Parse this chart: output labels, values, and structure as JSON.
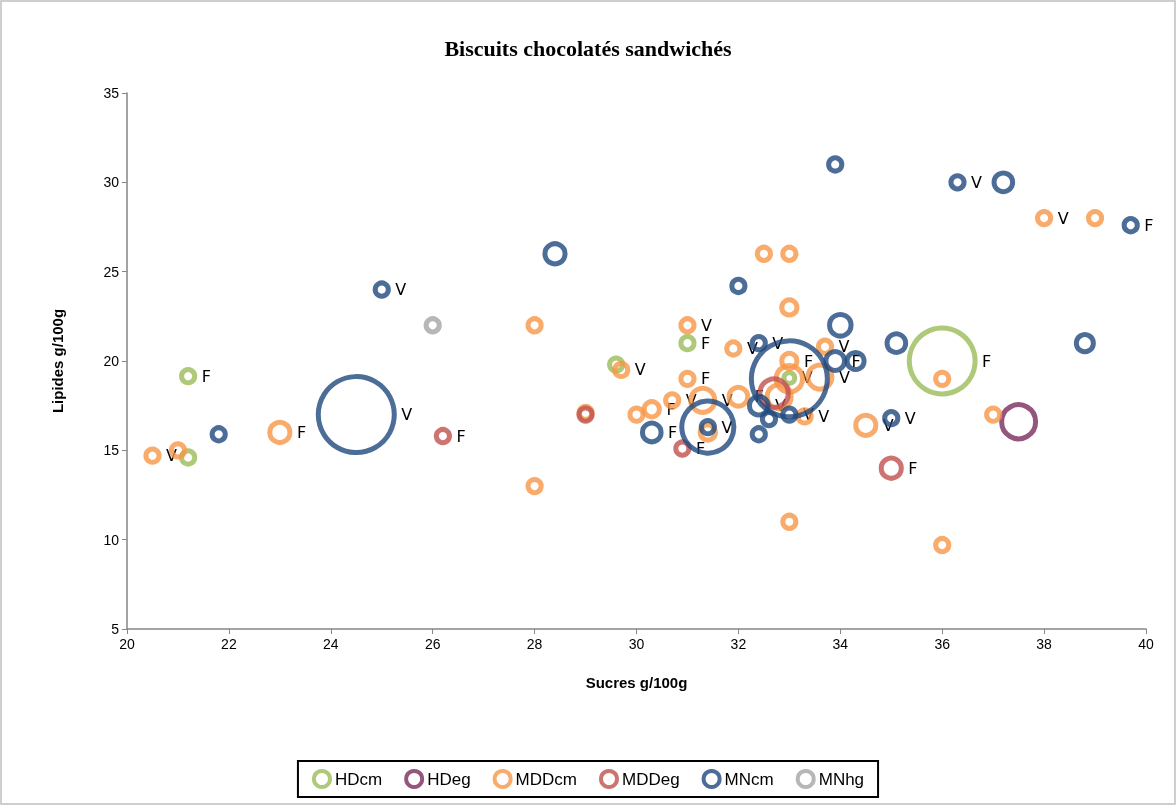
{
  "chart_data": {
    "type": "bubble",
    "title": "Biscuits chocolatés sandwichés",
    "xlabel": "Sucres g/100g",
    "ylabel": "Lipides g/100g",
    "xlim": [
      20,
      40
    ],
    "xticks": [
      20,
      22,
      24,
      26,
      28,
      30,
      32,
      34,
      36,
      38,
      40
    ],
    "ylim": [
      5,
      35
    ],
    "yticks": [
      5,
      10,
      15,
      20,
      25,
      30,
      35
    ],
    "grid": false,
    "legend": "bottom",
    "marker": "circle",
    "series": [
      {
        "name": "HDcm",
        "color": "#9bbb59",
        "x": [
          21.2,
          21.2,
          29.6,
          31.0,
          33.0,
          36.0
        ],
        "values": [
          19.15,
          14.6,
          19.8,
          21.0,
          19.05,
          20.0
        ],
        "sizes": [
          0.03,
          0.03,
          0.03,
          0.03,
          0.02,
          0.75
        ],
        "value_labels": [
          "F",
          null,
          null,
          "F",
          "V",
          "F"
        ]
      },
      {
        "name": "HDeg",
        "color": "#7b2c5e",
        "x": [
          37.5
        ],
        "values": [
          16.6
        ],
        "sizes": [
          0.2
        ],
        "value_labels": [
          null
        ]
      },
      {
        "name": "MDDcm",
        "color": "#f79646",
        "x": [
          20.5,
          21.0,
          23.0,
          28.0,
          28.0,
          29.0,
          29.7,
          30.0,
          30.3,
          30.7,
          31.0,
          31.0,
          31.3,
          31.4,
          31.9,
          32.0,
          32.5,
          33.0,
          33.0,
          33.0,
          33.0,
          32.8,
          33.7,
          33.6,
          33.3,
          33.0,
          34.5,
          36.0,
          36.0,
          37.0,
          38.0,
          39.0
        ],
        "values": [
          14.7,
          15.0,
          16.0,
          22.0,
          13.0,
          17.1,
          19.5,
          17.0,
          17.3,
          17.8,
          22.0,
          19.0,
          17.8,
          16.0,
          20.7,
          18.0,
          26.0,
          26.0,
          23.0,
          20.0,
          19.0,
          18.0,
          20.8,
          19.1,
          16.9,
          11.0,
          16.4,
          19.0,
          9.7,
          17.0,
          28.0,
          28.0
        ],
        "sizes": [
          0.03,
          0.03,
          0.07,
          0.03,
          0.03,
          0.03,
          0.03,
          0.03,
          0.04,
          0.03,
          0.03,
          0.03,
          0.1,
          0.04,
          0.03,
          0.06,
          0.03,
          0.03,
          0.04,
          0.04,
          0.12,
          0.1,
          0.03,
          0.1,
          0.03,
          0.03,
          0.07,
          0.03,
          0.03,
          0.03,
          0.03,
          0.03
        ],
        "value_labels": [
          "V",
          null,
          "F",
          null,
          null,
          null,
          "V",
          null,
          "F",
          "V",
          "V",
          "F",
          "V",
          null,
          "V",
          "F",
          null,
          null,
          null,
          "F",
          null,
          null,
          "V",
          "V",
          "V",
          null,
          "V",
          null,
          null,
          null,
          "V",
          null
        ]
      },
      {
        "name": "MDDeg",
        "color": "#c0504d",
        "x": [
          26.2,
          29.0,
          30.9,
          32.7,
          35.0
        ],
        "values": [
          15.8,
          17.0,
          15.1,
          18.2,
          14.0
        ],
        "sizes": [
          0.03,
          0.03,
          0.03,
          0.14,
          0.07
        ],
        "value_labels": [
          "F",
          null,
          "F",
          null,
          "F"
        ]
      },
      {
        "name": "MNcm",
        "color": "#1f497d",
        "x": [
          21.8,
          24.5,
          25.0,
          28.4,
          30.3,
          31.4,
          31.4,
          32.0,
          32.4,
          32.4,
          32.6,
          32.4,
          33.0,
          33.0,
          33.9,
          34.0,
          33.9,
          34.3,
          35.1,
          35.0,
          36.3,
          37.2,
          38.8,
          39.7
        ],
        "values": [
          15.9,
          17.0,
          24.0,
          26.0,
          16.0,
          16.3,
          16.3,
          24.2,
          21.0,
          17.5,
          16.75,
          15.9,
          17.0,
          19.0,
          31.0,
          22.0,
          20.0,
          20.0,
          21.0,
          16.8,
          30.0,
          30.0,
          21.0,
          27.6
        ],
        "sizes": [
          0.03,
          1.0,
          0.03,
          0.07,
          0.06,
          0.47,
          0.03,
          0.03,
          0.03,
          0.06,
          0.03,
          0.03,
          0.03,
          1.0,
          0.03,
          0.08,
          0.06,
          0.05,
          0.06,
          0.03,
          0.03,
          0.06,
          0.05,
          0.03
        ],
        "value_labels": [
          null,
          "V",
          "V",
          null,
          "F",
          null,
          "V",
          null,
          "V",
          "V",
          null,
          null,
          "V",
          null,
          null,
          null,
          "F",
          null,
          null,
          "V",
          "V",
          null,
          null,
          "F"
        ]
      },
      {
        "name": "MNhg",
        "color": "#a5a5a5",
        "x": [
          26.0
        ],
        "values": [
          22.0
        ],
        "sizes": [
          0.03
        ],
        "value_labels": [
          null
        ]
      }
    ]
  }
}
